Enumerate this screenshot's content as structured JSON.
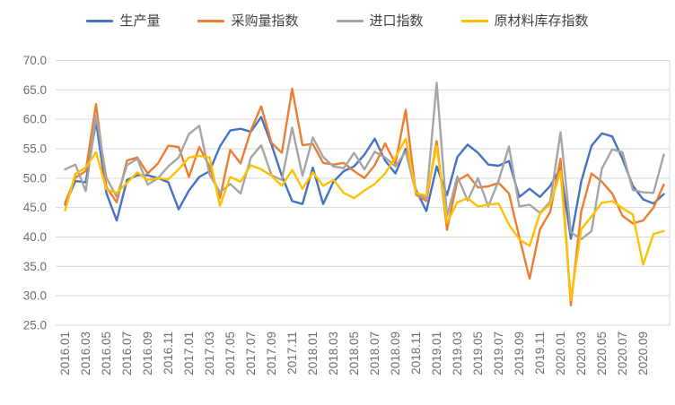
{
  "chart_data": {
    "type": "line",
    "title": "",
    "legend_position": "top",
    "grid": "horizontal",
    "ylim": [
      25,
      70
    ],
    "y_ticks": [
      70.0,
      65.0,
      60.0,
      55.0,
      50.0,
      45.0,
      40.0,
      35.0,
      30.0,
      25.0
    ],
    "x_tick_interval": 2,
    "x": [
      "2016.01",
      "2016.02",
      "2016.03",
      "2016.04",
      "2016.05",
      "2016.06",
      "2016.07",
      "2016.08",
      "2016.09",
      "2016.10",
      "2016.11",
      "2016.12",
      "2017.01",
      "2017.02",
      "2017.03",
      "2017.04",
      "2017.05",
      "2017.06",
      "2017.07",
      "2017.08",
      "2017.09",
      "2017.10",
      "2017.11",
      "2017.12",
      "2018.01",
      "2018.02",
      "2018.03",
      "2018.04",
      "2018.05",
      "2018.06",
      "2018.07",
      "2018.08",
      "2018.09",
      "2018.10",
      "2018.11",
      "2018.12",
      "2019.01",
      "2019.02",
      "2019.03",
      "2019.04",
      "2019.05",
      "2019.06",
      "2019.07",
      "2019.08",
      "2019.09",
      "2019.10",
      "2019.11",
      "2019.12",
      "2020.01",
      "2020.02",
      "2020.03",
      "2020.04",
      "2020.05",
      "2020.06",
      "2020.07",
      "2020.08",
      "2020.09",
      "2020.10",
      "2020.11"
    ],
    "colors": {
      "production": "#4472C4",
      "purchasing_volume_index": "#ED7D31",
      "import_index": "#A5A5A5",
      "raw_material_inventory_index": "#FFC000",
      "gridline": "#D9D9D9",
      "axis_label": "#6E6E6E",
      "legend_text": "#404040"
    },
    "series": [
      {
        "key": "production",
        "name": "生产量",
        "color": "#4472C4",
        "values": [
          45.5,
          49.5,
          49.3,
          59.6,
          47.5,
          42.8,
          49.7,
          50.5,
          50.5,
          50.0,
          49.3,
          44.7,
          47.9,
          50.2,
          51.2,
          55.4,
          58.1,
          58.4,
          57.9,
          60.4,
          55.7,
          50.4,
          46.1,
          45.6,
          51.8,
          45.6,
          49.4,
          51.2,
          52.0,
          54.0,
          56.7,
          53.0,
          50.8,
          55.0,
          48.0,
          44.4,
          52.0,
          47.1,
          53.6,
          55.7,
          54.3,
          52.3,
          52.1,
          52.9,
          46.8,
          48.2,
          46.8,
          48.7,
          51.7,
          39.7,
          49.4,
          55.5,
          57.6,
          57.1,
          53.3,
          48.7,
          46.4,
          45.7,
          47.3
        ]
      },
      {
        "key": "purchasing_volume_index",
        "name": "采购量指数",
        "color": "#ED7D31",
        "values": [
          45.8,
          50.1,
          51.2,
          62.6,
          48.5,
          45.9,
          53.0,
          53.5,
          50.8,
          52.5,
          55.5,
          55.3,
          50.2,
          55.3,
          52.0,
          46.6,
          54.8,
          52.5,
          58.1,
          62.2,
          56.0,
          54.3,
          65.2,
          55.6,
          55.8,
          52.6,
          52.3,
          52.6,
          51.2,
          50.0,
          52.2,
          55.9,
          52.5,
          61.6,
          47.2,
          46.1,
          56.3,
          41.2,
          49.6,
          50.6,
          48.4,
          48.6,
          49.2,
          47.4,
          40.0,
          32.9,
          41.3,
          44.3,
          53.3,
          28.4,
          44.3,
          50.8,
          49.4,
          47.4,
          43.6,
          42.3,
          42.8,
          45.0,
          48.9
        ]
      },
      {
        "key": "import_index",
        "name": "进口指数",
        "color": "#A5A5A5",
        "values": [
          51.5,
          52.3,
          47.8,
          60.7,
          50.1,
          46.8,
          52.2,
          53.3,
          48.9,
          50.0,
          52.0,
          53.5,
          57.5,
          58.9,
          50.6,
          47.6,
          49.0,
          47.4,
          53.5,
          55.6,
          50.5,
          49.7,
          58.6,
          50.4,
          56.9,
          53.6,
          52.0,
          51.7,
          54.3,
          51.5,
          54.5,
          53.5,
          52.0,
          54.5,
          47.5,
          46.5,
          66.2,
          43.5,
          50.3,
          46.2,
          50.0,
          45.2,
          49.6,
          55.4,
          45.2,
          45.5,
          44.1,
          46.0,
          57.8,
          40.8,
          39.6,
          41.0,
          51.6,
          54.9,
          54.4,
          48.0,
          47.6,
          47.5,
          54.0
        ]
      },
      {
        "key": "raw_material_inventory_index",
        "name": "原材料库存指数",
        "color": "#FFC000",
        "values": [
          44.5,
          50.7,
          51.8,
          54.4,
          48.1,
          47.5,
          49.2,
          51.0,
          49.7,
          50.0,
          49.8,
          51.5,
          53.5,
          53.8,
          53.5,
          45.3,
          50.2,
          49.4,
          52.2,
          51.5,
          50.4,
          48.7,
          51.4,
          48.2,
          51.0,
          48.7,
          49.7,
          47.5,
          46.6,
          47.9,
          49.0,
          50.8,
          53.5,
          56.7,
          47.5,
          47.0,
          55.5,
          42.4,
          45.9,
          46.6,
          45.2,
          45.5,
          45.7,
          42.1,
          39.6,
          38.5,
          44.0,
          45.6,
          51.2,
          29.3,
          41.3,
          43.5,
          45.8,
          46.1,
          44.9,
          43.8,
          35.3,
          40.5,
          41.0
        ]
      }
    ]
  },
  "layout_note": ""
}
